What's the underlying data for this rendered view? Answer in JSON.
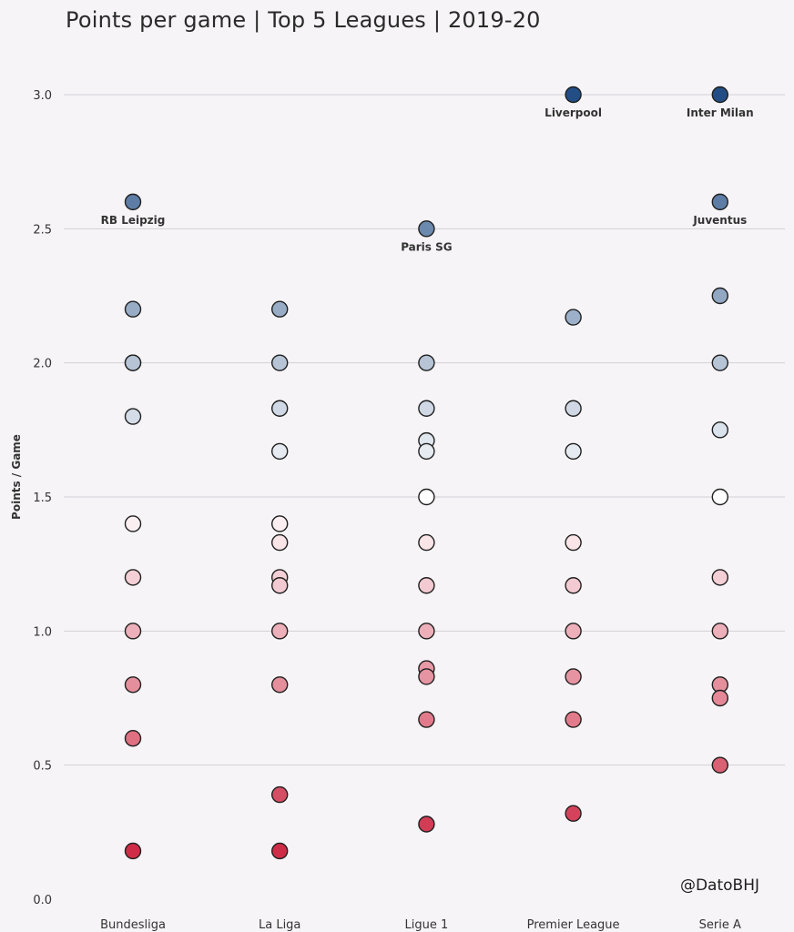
{
  "chart_data": {
    "type": "scatter",
    "title": "Points per game | Top 5 Leagues | 2019-20",
    "ylabel": "Points / Game",
    "xlabel": "",
    "ylim": [
      0,
      3
    ],
    "yticks": [
      "0.0",
      "0.5",
      "1.0",
      "1.5",
      "2.0",
      "2.5",
      "3.0"
    ],
    "grid": true,
    "categories": [
      "Bundesliga",
      "La Liga",
      "Ligue 1",
      "Premier League",
      "Serie A"
    ],
    "series": [
      {
        "category": "Bundesliga",
        "values": [
          2.6,
          2.2,
          2.0,
          2.0,
          1.8,
          1.4,
          1.2,
          1.0,
          0.8,
          0.6,
          0.18
        ]
      },
      {
        "category": "La Liga",
        "values": [
          2.2,
          2.0,
          1.83,
          1.67,
          1.4,
          1.33,
          1.2,
          1.17,
          1.0,
          0.8,
          0.39,
          0.18
        ]
      },
      {
        "category": "Ligue 1",
        "values": [
          2.5,
          2.0,
          1.83,
          1.71,
          1.67,
          1.5,
          1.33,
          1.17,
          1.0,
          0.86,
          0.83,
          0.67,
          0.28
        ]
      },
      {
        "category": "Premier League",
        "values": [
          3.0,
          2.17,
          1.83,
          1.67,
          1.33,
          1.17,
          1.0,
          0.83,
          0.67,
          0.32
        ]
      },
      {
        "category": "Serie A",
        "values": [
          3.0,
          2.6,
          2.25,
          2.0,
          1.75,
          1.5,
          1.2,
          1.0,
          0.8,
          0.75,
          0.5
        ]
      }
    ],
    "annotations": [
      {
        "category": "Bundesliga",
        "value": 2.6,
        "text": "RB Leipzig"
      },
      {
        "category": "Ligue 1",
        "value": 2.5,
        "text": "Paris SG"
      },
      {
        "category": "Premier League",
        "value": 3.0,
        "text": "Liverpool"
      },
      {
        "category": "Serie A",
        "value": 3.0,
        "text": "Inter Milan"
      },
      {
        "category": "Serie A",
        "value": 2.6,
        "text": "Juventus"
      }
    ],
    "colors": {
      "scale_low": "#c8102e",
      "scale_mid": "#ffffff",
      "scale_high": "#234e85",
      "scale_mid_value": 1.5
    },
    "watermark": "@DatoBHJ"
  }
}
